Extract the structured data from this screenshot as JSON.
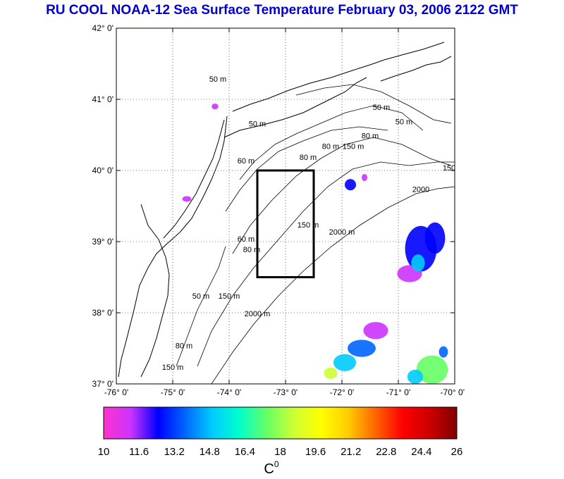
{
  "title": "RU COOL  NOAA-12 Sea Surface Temperature February 03, 2006 2122 GMT",
  "lat_ticks": [
    {
      "value": 42,
      "label": "42° 0'"
    },
    {
      "value": 41,
      "label": "41° 0'"
    },
    {
      "value": 40,
      "label": "40° 0'"
    },
    {
      "value": 39,
      "label": "39° 0'"
    },
    {
      "value": 38,
      "label": "38° 0'"
    },
    {
      "value": 37,
      "label": "37° 0'"
    }
  ],
  "lon_ticks": [
    {
      "value": -76,
      "label": "-76° 0'"
    },
    {
      "value": -75,
      "label": "-75° 0'"
    },
    {
      "value": -74,
      "label": "-74° 0'"
    },
    {
      "value": -73,
      "label": "-73° 0'"
    },
    {
      "value": -72,
      "label": "-72° 0'"
    },
    {
      "value": -71,
      "label": "-71° 0'"
    },
    {
      "value": -70,
      "label": "-70° 0'"
    }
  ],
  "map_extent": {
    "lon_min": -76,
    "lon_max": -70,
    "lat_min": 37,
    "lat_max": 42
  },
  "study_box": {
    "lon_min": -73.5,
    "lon_max": -72.5,
    "lat_min": 38.5,
    "lat_max": 40
  },
  "contour_labels": [
    {
      "text": "50 m",
      "lon": -74.2,
      "lat": 41.25
    },
    {
      "text": "50 m",
      "lon": -73.5,
      "lat": 40.62
    },
    {
      "text": "50 m",
      "lon": -71.3,
      "lat": 40.85
    },
    {
      "text": "50 m",
      "lon": -70.9,
      "lat": 40.65
    },
    {
      "text": "80 m",
      "lon": -71.5,
      "lat": 40.45
    },
    {
      "text": "80 m",
      "lon": -72.6,
      "lat": 40.15
    },
    {
      "text": "80 m",
      "lon": -72.2,
      "lat": 40.3
    },
    {
      "text": "60 m",
      "lon": -73.7,
      "lat": 40.1
    },
    {
      "text": "150 m",
      "lon": -71.8,
      "lat": 40.3
    },
    {
      "text": "150",
      "lon": -70.1,
      "lat": 40.0
    },
    {
      "text": "2000",
      "lon": -70.6,
      "lat": 39.7
    },
    {
      "text": "150 m",
      "lon": -72.6,
      "lat": 39.2
    },
    {
      "text": "2000 m",
      "lon": -72.0,
      "lat": 39.1
    },
    {
      "text": "60 m",
      "lon": -73.7,
      "lat": 39.0
    },
    {
      "text": "80 m",
      "lon": -73.6,
      "lat": 38.85
    },
    {
      "text": "150 m",
      "lon": -74.0,
      "lat": 38.2
    },
    {
      "text": "2000 m",
      "lon": -73.5,
      "lat": 37.95
    },
    {
      "text": "50 m",
      "lon": -74.5,
      "lat": 38.2
    },
    {
      "text": "150 m",
      "lon": -75.0,
      "lat": 37.2
    },
    {
      "text": "80 m",
      "lon": -74.8,
      "lat": 37.5
    }
  ],
  "colorbar": {
    "vmin": 10,
    "vmax": 26,
    "tick_labels": [
      "10",
      "11.6",
      "13.2",
      "14.8",
      "16.4",
      "18",
      "19.6",
      "21.2",
      "22.8",
      "24.4",
      "26"
    ],
    "unit_label": "C",
    "unit_superscript": "0",
    "colors": [
      "#ff33cc",
      "#cc33ff",
      "#0000ff",
      "#0066ff",
      "#00ccff",
      "#00ffcc",
      "#66ff66",
      "#ccff33",
      "#ffff00",
      "#ffcc00",
      "#ff6600",
      "#ff0000",
      "#cc0000",
      "#800000"
    ]
  },
  "sst_patches": [
    {
      "lon": -70.6,
      "lat": 38.9,
      "rx": 0.28,
      "ry": 0.32,
      "temp": 12.5
    },
    {
      "lon": -70.35,
      "lat": 39.05,
      "rx": 0.18,
      "ry": 0.22,
      "temp": 13.0
    },
    {
      "lon": -70.8,
      "lat": 38.55,
      "rx": 0.22,
      "ry": 0.12,
      "temp": 11.3
    },
    {
      "lon": -70.65,
      "lat": 38.7,
      "rx": 0.12,
      "ry": 0.12,
      "temp": 14.5
    },
    {
      "lon": -71.85,
      "lat": 39.8,
      "rx": 0.1,
      "ry": 0.08,
      "temp": 12.2
    },
    {
      "lon": -71.6,
      "lat": 39.9,
      "rx": 0.05,
      "ry": 0.05,
      "temp": 11.0
    },
    {
      "lon": -71.4,
      "lat": 37.75,
      "rx": 0.22,
      "ry": 0.12,
      "temp": 11.2
    },
    {
      "lon": -71.65,
      "lat": 37.5,
      "rx": 0.25,
      "ry": 0.12,
      "temp": 14.0
    },
    {
      "lon": -71.95,
      "lat": 37.3,
      "rx": 0.2,
      "ry": 0.12,
      "temp": 15.5
    },
    {
      "lon": -72.2,
      "lat": 37.15,
      "rx": 0.12,
      "ry": 0.08,
      "temp": 18.5
    },
    {
      "lon": -70.4,
      "lat": 37.2,
      "rx": 0.28,
      "ry": 0.2,
      "temp": 17.0
    },
    {
      "lon": -70.7,
      "lat": 37.1,
      "rx": 0.14,
      "ry": 0.1,
      "temp": 15.0
    },
    {
      "lon": -70.2,
      "lat": 37.45,
      "rx": 0.08,
      "ry": 0.08,
      "temp": 13.5
    },
    {
      "lon": -74.75,
      "lat": 39.6,
      "rx": 0.08,
      "ry": 0.04,
      "temp": 11.0
    },
    {
      "lon": -74.25,
      "lat": 40.9,
      "rx": 0.06,
      "ry": 0.04,
      "temp": 10.8
    }
  ]
}
